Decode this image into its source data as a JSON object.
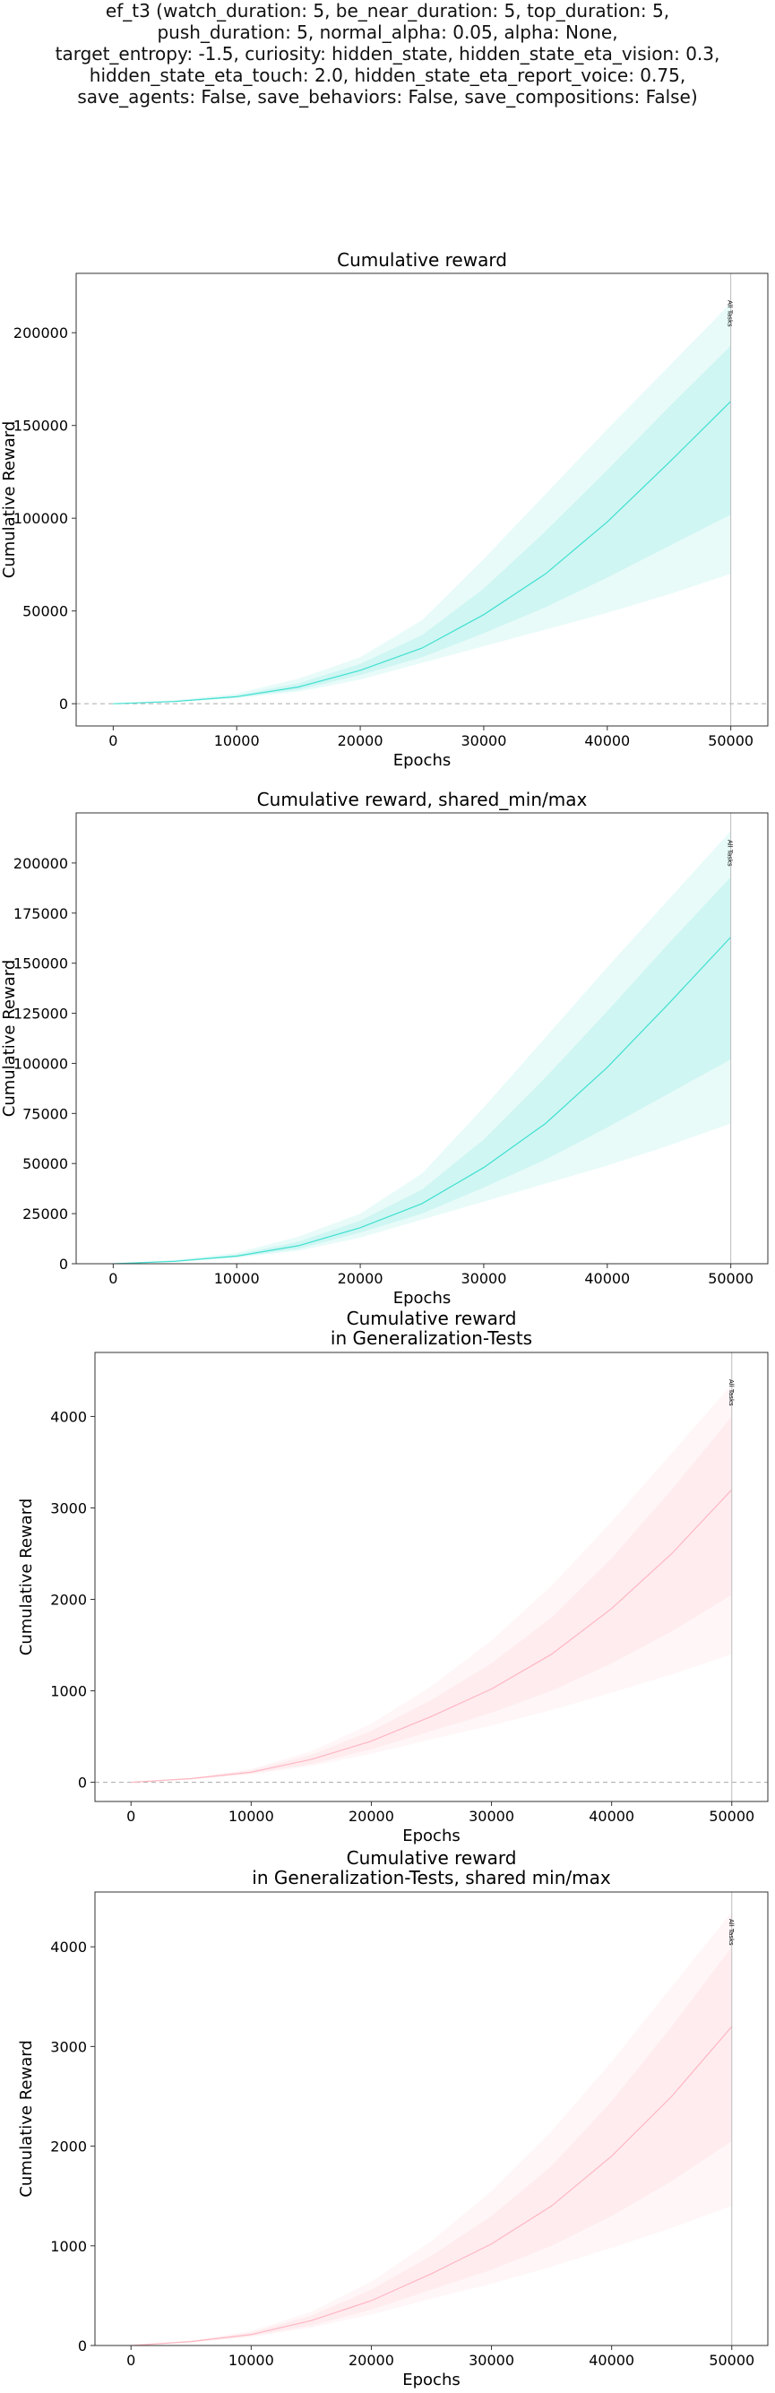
{
  "suptitle_lines": [
    "ef_t3 (watch_duration: 5, be_near_duration: 5, top_duration: 5,",
    "push_duration: 5, normal_alpha: 0.05, alpha: None,",
    "target_entropy: -1.5, curiosity: hidden_state, hidden_state_eta_vision: 0.3,",
    "hidden_state_eta_touch: 2.0, hidden_state_eta_report_voice: 0.75,",
    "save_agents: False, save_behaviors: False, save_compositions: False)"
  ],
  "chart_data": [
    {
      "type": "line",
      "title": [
        "Cumulative reward"
      ],
      "xlabel": "Epochs",
      "ylabel": "Cumulative Reward",
      "xlim": [
        -3000,
        53000
      ],
      "ylim": [
        -12000,
        232000
      ],
      "xticks": [
        0,
        10000,
        20000,
        30000,
        40000,
        50000
      ],
      "yticks": [
        0,
        50000,
        100000,
        150000,
        200000
      ],
      "zero_line": true,
      "color": "#40e0d0",
      "vline": {
        "x": 50000,
        "label": "All Tasks"
      },
      "x": [
        0,
        5000,
        10000,
        15000,
        20000,
        25000,
        30000,
        35000,
        40000,
        45000,
        50000
      ],
      "series": [
        {
          "values": [
            0,
            1200,
            3800,
            9000,
            18000,
            30000,
            48000,
            70000,
            98000,
            130000,
            163000
          ]
        }
      ],
      "band_inner": {
        "lower": [
          0,
          1000,
          3300,
          7500,
          15500,
          25000,
          38000,
          52000,
          68000,
          85000,
          102000
        ],
        "upper": [
          0,
          1600,
          4500,
          11000,
          21500,
          37000,
          62000,
          93000,
          126000,
          160000,
          193000
        ]
      },
      "band_outer": {
        "lower": [
          0,
          900,
          3000,
          6500,
          13000,
          22000,
          31000,
          40000,
          49000,
          59000,
          70000
        ],
        "upper": [
          0,
          1900,
          5500,
          13500,
          25000,
          45000,
          78000,
          113000,
          148000,
          182000,
          216000
        ]
      }
    },
    {
      "type": "line",
      "title": [
        "Cumulative reward, shared_min/max"
      ],
      "xlabel": "Epochs",
      "ylabel": "Cumulative Reward",
      "xlim": [
        -3000,
        53000
      ],
      "ylim": [
        0,
        225000
      ],
      "xticks": [
        0,
        10000,
        20000,
        30000,
        40000,
        50000
      ],
      "yticks": [
        0,
        25000,
        50000,
        75000,
        100000,
        125000,
        150000,
        175000,
        200000
      ],
      "zero_line": false,
      "color": "#40e0d0",
      "vline": {
        "x": 50000,
        "label": "All Tasks"
      },
      "x": [
        0,
        5000,
        10000,
        15000,
        20000,
        25000,
        30000,
        35000,
        40000,
        45000,
        50000
      ],
      "series": [
        {
          "values": [
            0,
            1200,
            3800,
            9000,
            18000,
            30000,
            48000,
            70000,
            98000,
            130000,
            163000
          ]
        }
      ],
      "band_inner": {
        "lower": [
          0,
          1000,
          3300,
          7500,
          15500,
          25000,
          38000,
          52000,
          68000,
          85000,
          102000
        ],
        "upper": [
          0,
          1600,
          4500,
          11000,
          21500,
          37000,
          62000,
          93000,
          126000,
          160000,
          193000
        ]
      },
      "band_outer": {
        "lower": [
          0,
          900,
          3000,
          6500,
          13000,
          22000,
          31000,
          40000,
          49000,
          59000,
          70000
        ],
        "upper": [
          0,
          1900,
          5500,
          13500,
          25000,
          45000,
          78000,
          113000,
          148000,
          182000,
          216000
        ]
      }
    },
    {
      "type": "line",
      "title": [
        "Cumulative reward",
        "in Generalization-Tests"
      ],
      "xlabel": "Epochs",
      "ylabel": "Cumulative Reward",
      "xlim": [
        -3000,
        53000
      ],
      "ylim": [
        -210,
        4700
      ],
      "xticks": [
        0,
        10000,
        20000,
        30000,
        40000,
        50000
      ],
      "yticks": [
        0,
        1000,
        2000,
        3000,
        4000
      ],
      "zero_line": true,
      "color": "#ffb6c1",
      "vline": {
        "x": 50000,
        "label": "All Tasks"
      },
      "x": [
        0,
        5000,
        10000,
        15000,
        20000,
        25000,
        30000,
        35000,
        40000,
        45000,
        50000
      ],
      "series": [
        {
          "values": [
            0,
            40,
            110,
            250,
            450,
            720,
            1020,
            1400,
            1900,
            2500,
            3200
          ]
        }
      ],
      "band_inner": {
        "lower": [
          0,
          35,
          95,
          200,
          360,
          560,
          760,
          1000,
          1300,
          1650,
          2050
        ],
        "upper": [
          0,
          45,
          130,
          300,
          560,
          900,
          1300,
          1800,
          2450,
          3200,
          4000
        ]
      },
      "band_outer": {
        "lower": [
          0,
          30,
          85,
          180,
          310,
          470,
          620,
          790,
          980,
          1180,
          1400
        ],
        "upper": [
          0,
          50,
          145,
          340,
          640,
          1050,
          1550,
          2150,
          2850,
          3600,
          4350
        ]
      }
    },
    {
      "type": "line",
      "title": [
        "Cumulative reward",
        "in Generalization-Tests, shared min/max"
      ],
      "xlabel": "Epochs",
      "ylabel": "Cumulative Reward",
      "xlim": [
        -3000,
        53000
      ],
      "ylim": [
        0,
        4550
      ],
      "xticks": [
        0,
        10000,
        20000,
        30000,
        40000,
        50000
      ],
      "yticks": [
        0,
        1000,
        2000,
        3000,
        4000
      ],
      "zero_line": false,
      "color": "#ffb6c1",
      "vline": {
        "x": 50000,
        "label": "All Tasks"
      },
      "x": [
        0,
        5000,
        10000,
        15000,
        20000,
        25000,
        30000,
        35000,
        40000,
        45000,
        50000
      ],
      "series": [
        {
          "values": [
            0,
            40,
            110,
            250,
            450,
            720,
            1020,
            1400,
            1900,
            2500,
            3200
          ]
        }
      ],
      "band_inner": {
        "lower": [
          0,
          35,
          95,
          200,
          360,
          560,
          760,
          1000,
          1300,
          1650,
          2050
        ],
        "upper": [
          0,
          45,
          130,
          300,
          560,
          900,
          1300,
          1800,
          2450,
          3200,
          4000
        ]
      },
      "band_outer": {
        "lower": [
          0,
          30,
          85,
          180,
          310,
          470,
          620,
          790,
          980,
          1180,
          1400
        ],
        "upper": [
          0,
          50,
          145,
          340,
          640,
          1050,
          1550,
          2150,
          2850,
          3600,
          4350
        ]
      }
    }
  ]
}
